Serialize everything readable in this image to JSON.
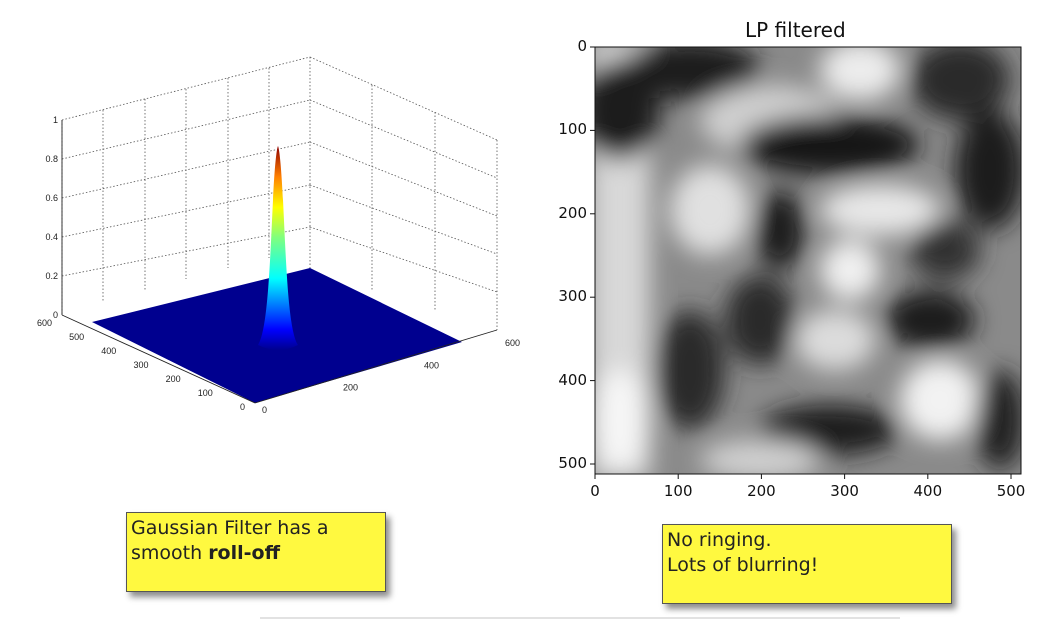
{
  "surface_plot": {
    "z_ticks": [
      "0",
      "0.2",
      "0.4",
      "0.6",
      "0.8",
      "1"
    ],
    "y_ticks": [
      "0",
      "100",
      "200",
      "300",
      "400",
      "500",
      "600"
    ],
    "x_ticks": [
      "0",
      "200",
      "400",
      "600"
    ],
    "peak_value": 0.87
  },
  "lp_image": {
    "title": "LP filtered",
    "y_ticks": [
      "0",
      "100",
      "200",
      "300",
      "400",
      "500"
    ],
    "x_ticks": [
      "0",
      "100",
      "200",
      "300",
      "400",
      "500"
    ]
  },
  "notes": {
    "left_line1": "Gaussian Filter has a",
    "left_line2_prefix": "smooth ",
    "left_line2_bold": "roll-off",
    "right_line1": "No ringing.",
    "right_line2": "Lots of blurring!"
  },
  "colors": {
    "note_bg": "#fff940",
    "surface_base": "#00008f"
  }
}
